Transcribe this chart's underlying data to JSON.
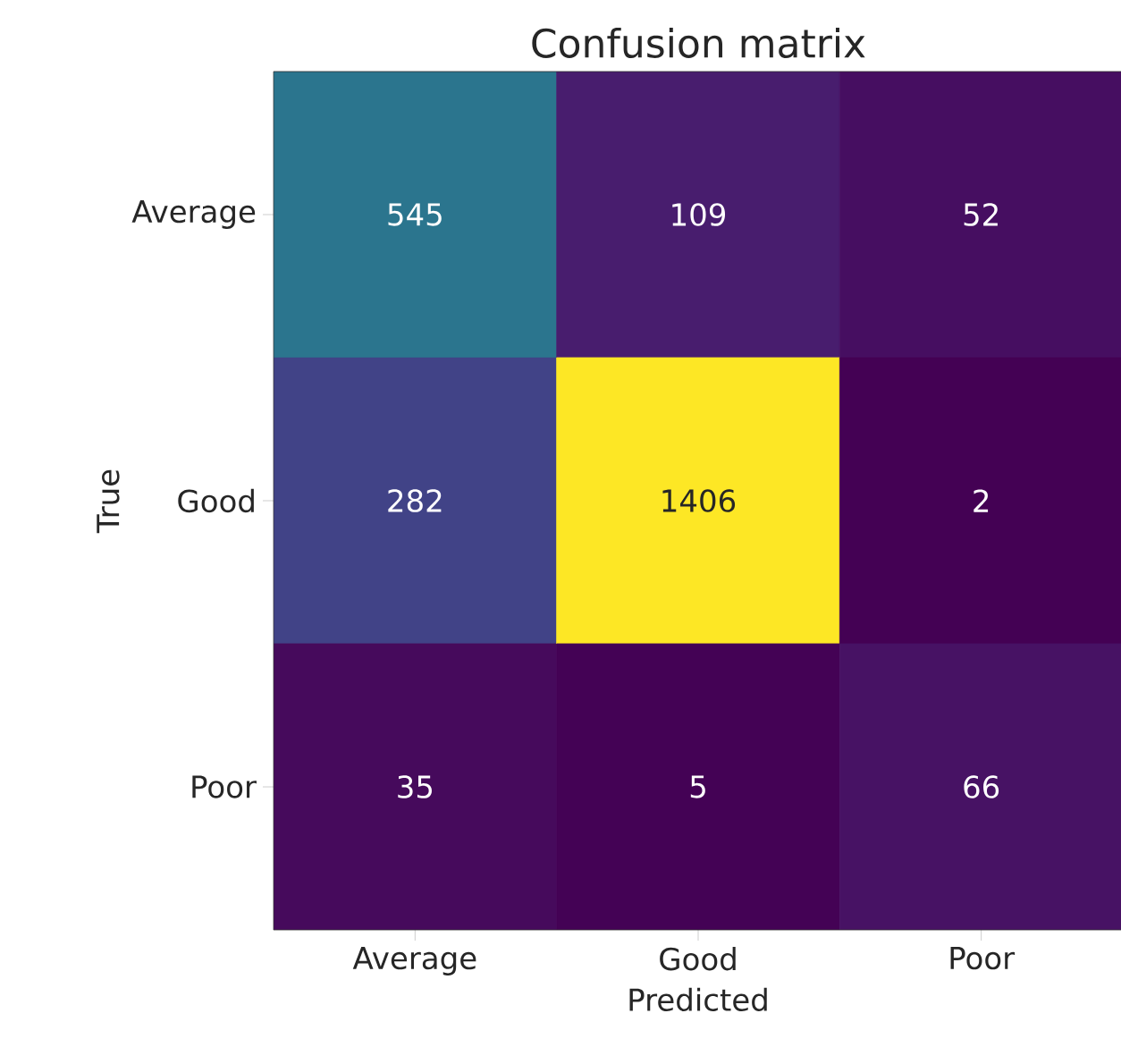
{
  "chart_data": {
    "type": "heatmap",
    "title": "Confusion matrix",
    "xlabel": "Predicted",
    "ylabel": "True",
    "categories": [
      "Average",
      "Good",
      "Poor"
    ],
    "y_categories": [
      "Average",
      "Good",
      "Poor"
    ],
    "cells": [
      [
        545,
        109,
        52
      ],
      [
        282,
        1406,
        2
      ],
      [
        35,
        5,
        66
      ]
    ],
    "data_labels": true
  }
}
